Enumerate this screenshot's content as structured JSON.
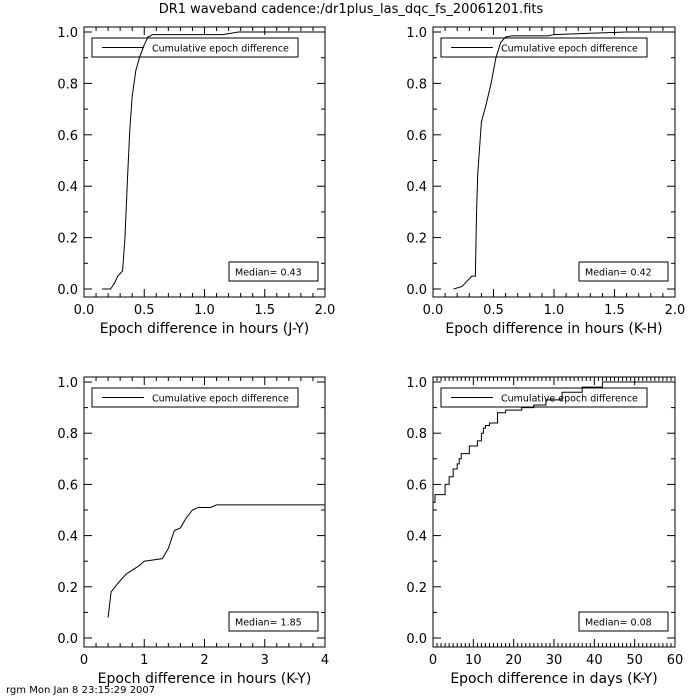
{
  "title": "DR1 waveband cadence:/dr1plus_las_dqc_fs_20061201.fits",
  "footer": "rgm Mon Jan  8 23:15:29 2007",
  "chart_data": [
    {
      "type": "line",
      "xlabel": "Epoch difference in hours (J-Y)",
      "ylabel": "",
      "xlim": [
        0,
        2
      ],
      "ylim": [
        0,
        1
      ],
      "xticks": [
        "0.0",
        "0.5",
        "1.0",
        "1.5",
        "2.0"
      ],
      "xtick_values": [
        0,
        0.5,
        1,
        1.5,
        2
      ],
      "xminor": 0.1,
      "yticks": [
        "0.0",
        "0.2",
        "0.4",
        "0.6",
        "0.8",
        "1.0"
      ],
      "legend": "Cumulative epoch difference",
      "legend_position": "top",
      "annotation": "Median=  0.43",
      "step": false,
      "series": [
        {
          "name": "Cumulative epoch difference",
          "x": [
            0.15,
            0.22,
            0.25,
            0.28,
            0.32,
            0.34,
            0.36,
            0.38,
            0.4,
            0.43,
            0.46,
            0.5,
            0.53,
            0.57,
            0.62,
            1.15,
            1.22,
            1.28,
            2.0
          ],
          "y": [
            0,
            0,
            0.02,
            0.05,
            0.07,
            0.2,
            0.42,
            0.62,
            0.75,
            0.85,
            0.9,
            0.95,
            0.98,
            0.99,
            0.99,
            0.99,
            0.995,
            1.0,
            1.0
          ]
        }
      ]
    },
    {
      "type": "line",
      "xlabel": "Epoch difference in hours (K-H)",
      "ylabel": "",
      "xlim": [
        0,
        2
      ],
      "ylim": [
        0,
        1
      ],
      "xticks": [
        "0.0",
        "0.5",
        "1.0",
        "1.5",
        "2.0"
      ],
      "xtick_values": [
        0,
        0.5,
        1,
        1.5,
        2
      ],
      "xminor": 0.1,
      "yticks": [
        "0.0",
        "0.2",
        "0.4",
        "0.6",
        "0.8",
        "1.0"
      ],
      "legend": "Cumulative epoch difference",
      "legend_position": "top",
      "annotation": "Median=  0.42",
      "step": false,
      "series": [
        {
          "name": "Cumulative epoch difference",
          "x": [
            0.17,
            0.24,
            0.28,
            0.32,
            0.35,
            0.36,
            0.37,
            0.4,
            0.44,
            0.48,
            0.52,
            0.56,
            0.6,
            0.65,
            0.95,
            1.0,
            1.3,
            1.6,
            2.0
          ],
          "y": [
            0,
            0.01,
            0.03,
            0.05,
            0.05,
            0.3,
            0.45,
            0.65,
            0.72,
            0.8,
            0.9,
            0.96,
            0.98,
            0.985,
            0.985,
            0.99,
            0.995,
            1.0,
            1.0
          ]
        }
      ]
    },
    {
      "type": "line",
      "xlabel": "Epoch difference in hours (K-Y)",
      "ylabel": "",
      "xlim": [
        0,
        4
      ],
      "ylim": [
        0,
        1
      ],
      "xticks": [
        "0",
        "1",
        "2",
        "3",
        "4"
      ],
      "xtick_values": [
        0,
        1,
        2,
        3,
        4
      ],
      "xminor": 0.2,
      "yticks": [
        "0.0",
        "0.2",
        "0.4",
        "0.6",
        "0.8",
        "1.0"
      ],
      "legend": "Cumulative epoch difference",
      "legend_position": "top",
      "annotation": "Median=  1.85",
      "step": false,
      "series": [
        {
          "name": "Cumulative epoch difference",
          "x": [
            0.4,
            0.45,
            0.55,
            0.7,
            0.9,
            1.0,
            1.3,
            1.4,
            1.5,
            1.6,
            1.7,
            1.8,
            1.9,
            2.1,
            2.2,
            4.0
          ],
          "y": [
            0.08,
            0.18,
            0.21,
            0.25,
            0.28,
            0.3,
            0.31,
            0.35,
            0.42,
            0.43,
            0.47,
            0.5,
            0.51,
            0.51,
            0.52,
            0.52
          ]
        }
      ]
    },
    {
      "type": "line",
      "xlabel": "Epoch difference in days (K-Y)",
      "ylabel": "",
      "xlim": [
        0,
        60
      ],
      "ylim": [
        0,
        1
      ],
      "xticks": [
        "0",
        "10",
        "20",
        "30",
        "40",
        "50",
        "60"
      ],
      "xtick_values": [
        0,
        10,
        20,
        30,
        40,
        50,
        60
      ],
      "xminor": 1,
      "yticks": [
        "0.0",
        "0.2",
        "0.4",
        "0.6",
        "0.8",
        "1.0"
      ],
      "legend": "Cumulative epoch difference",
      "legend_position": "top",
      "annotation": "Median=  0.08",
      "step": true,
      "series": [
        {
          "name": "Cumulative epoch difference",
          "x": [
            0,
            0.5,
            3,
            4,
            5,
            6,
            6.5,
            7,
            9,
            11,
            12,
            12.5,
            13,
            14,
            16,
            18,
            22,
            25,
            28,
            32,
            37,
            42,
            60
          ],
          "y": [
            0.53,
            0.56,
            0.6,
            0.63,
            0.66,
            0.68,
            0.7,
            0.72,
            0.75,
            0.77,
            0.8,
            0.82,
            0.83,
            0.84,
            0.88,
            0.89,
            0.9,
            0.91,
            0.93,
            0.96,
            0.98,
            1.0,
            1.0
          ]
        }
      ]
    }
  ]
}
